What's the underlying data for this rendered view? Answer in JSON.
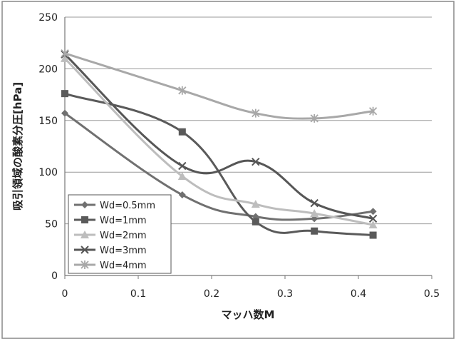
{
  "chart_data": {
    "type": "line",
    "title": "",
    "xlabel": "マッハ数M",
    "ylabel": "吸引領域の酸素分圧[hPa]",
    "xlim": [
      0,
      0.5
    ],
    "ylim": [
      0,
      250
    ],
    "x_ticks": [
      "0",
      "0.1",
      "0.2",
      "0.3",
      "0.4",
      "0.5"
    ],
    "y_ticks": [
      "0",
      "50",
      "100",
      "150",
      "200",
      "250"
    ],
    "grid": "horizontal",
    "legend_position": "bottom-left",
    "series": [
      {
        "name": "Wd=0.5mm",
        "marker": "diamond",
        "color": "#707070",
        "x": [
          0,
          0.16,
          0.26,
          0.34,
          0.42
        ],
        "y": [
          157,
          78,
          57,
          55,
          62
        ]
      },
      {
        "name": "Wd=1mm",
        "marker": "square",
        "color": "#5a5a5a",
        "x": [
          0,
          0.16,
          0.26,
          0.34,
          0.42
        ],
        "y": [
          176,
          139,
          52,
          43,
          39
        ]
      },
      {
        "name": "Wd=2mm",
        "marker": "triangle",
        "color": "#bdbdbd",
        "x": [
          0,
          0.16,
          0.26,
          0.34,
          0.42
        ],
        "y": [
          210,
          96,
          69,
          60,
          49
        ]
      },
      {
        "name": "Wd=3mm",
        "marker": "x",
        "color": "#565656",
        "x": [
          0,
          0.16,
          0.26,
          0.34,
          0.42
        ],
        "y": [
          214,
          106,
          110,
          70,
          55
        ]
      },
      {
        "name": "Wd=4mm",
        "marker": "star",
        "color": "#a8a8a8",
        "x": [
          0,
          0.16,
          0.26,
          0.34,
          0.42
        ],
        "y": [
          215,
          179,
          157,
          152,
          159
        ]
      }
    ]
  }
}
